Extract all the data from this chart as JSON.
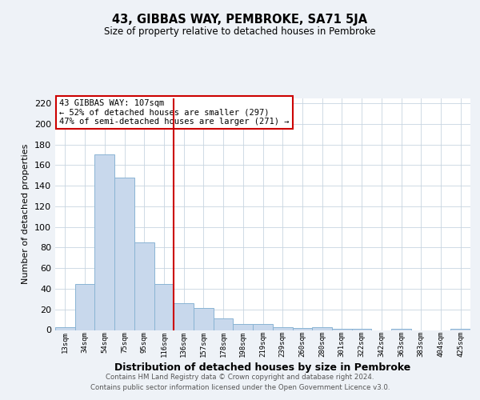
{
  "title": "43, GIBBAS WAY, PEMBROKE, SA71 5JA",
  "subtitle": "Size of property relative to detached houses in Pembroke",
  "xlabel": "Distribution of detached houses by size in Pembroke",
  "ylabel": "Number of detached properties",
  "bar_labels": [
    "13sqm",
    "34sqm",
    "54sqm",
    "75sqm",
    "95sqm",
    "116sqm",
    "136sqm",
    "157sqm",
    "178sqm",
    "198sqm",
    "219sqm",
    "239sqm",
    "260sqm",
    "280sqm",
    "301sqm",
    "322sqm",
    "342sqm",
    "363sqm",
    "383sqm",
    "404sqm",
    "425sqm"
  ],
  "bar_heights": [
    3,
    45,
    170,
    148,
    85,
    45,
    26,
    21,
    11,
    6,
    6,
    3,
    2,
    3,
    1,
    1,
    0,
    1,
    0,
    0,
    1
  ],
  "bar_color": "#c8d8ec",
  "bar_edge_color": "#8ab4d4",
  "vline_x": 5.5,
  "vline_color": "#cc0000",
  "annotation_title": "43 GIBBAS WAY: 107sqm",
  "annotation_line1": "← 52% of detached houses are smaller (297)",
  "annotation_line2": "47% of semi-detached houses are larger (271) →",
  "annotation_box_color": "#ffffff",
  "annotation_box_edge": "#cc0000",
  "ylim": [
    0,
    225
  ],
  "yticks": [
    0,
    20,
    40,
    60,
    80,
    100,
    120,
    140,
    160,
    180,
    200,
    220
  ],
  "footer1": "Contains HM Land Registry data © Crown copyright and database right 2024.",
  "footer2": "Contains public sector information licensed under the Open Government Licence v3.0.",
  "bg_color": "#eef2f7",
  "plot_bg_color": "#ffffff",
  "grid_color": "#c8d4e0"
}
